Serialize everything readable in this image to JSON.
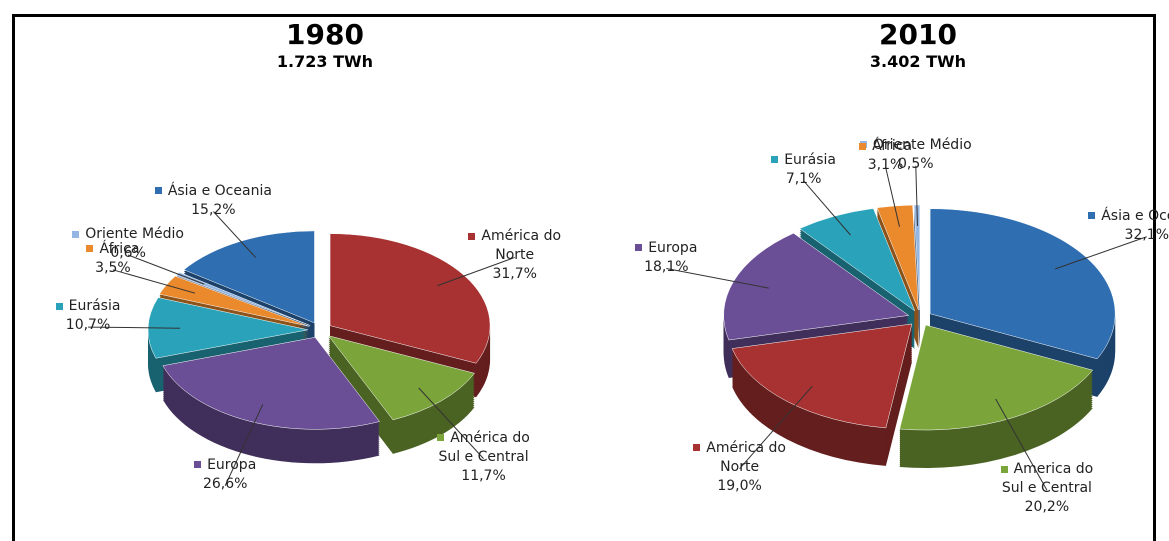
{
  "chart_data": [
    {
      "type": "pie",
      "title": "1980",
      "subtitle": "1.723 TWh",
      "series": [
        {
          "name": "América do Norte",
          "color": "#a83232",
          "values": [
            31.7
          ],
          "value_labels": [
            "31,7%"
          ]
        },
        {
          "name": "América do Sul e Central",
          "color": "#7ba53a",
          "values": [
            11.7
          ],
          "value_labels": [
            "11,7%"
          ]
        },
        {
          "name": "Europa",
          "color": "#6b4f96",
          "values": [
            26.6
          ],
          "value_labels": [
            "26,6%"
          ]
        },
        {
          "name": "Eurásia",
          "color": "#2aa3ba",
          "values": [
            10.7
          ],
          "value_labels": [
            "10,7%"
          ]
        },
        {
          "name": "África",
          "color": "#ea8a2c",
          "values": [
            3.5
          ],
          "value_labels": [
            "3,5%"
          ]
        },
        {
          "name": "Oriente Médio",
          "color": "#93b6e3",
          "values": [
            0.6
          ],
          "value_labels": [
            "0,6%"
          ]
        },
        {
          "name": "Ásia e Oceania",
          "color": "#2f6eb1",
          "values": [
            15.2
          ],
          "value_labels": [
            "15,2%"
          ]
        }
      ]
    },
    {
      "type": "pie",
      "title": "2010",
      "subtitle": "3.402 TWh",
      "series": [
        {
          "name": "Ásia e Oceania",
          "color": "#2f6eb1",
          "values": [
            32.1
          ],
          "value_labels": [
            "32,1%"
          ]
        },
        {
          "name": "America do Sul e Central",
          "color": "#7ba53a",
          "values": [
            20.2
          ],
          "value_labels": [
            "20,2%"
          ]
        },
        {
          "name": "América do Norte",
          "color": "#a83232",
          "values": [
            19.0
          ],
          "value_labels": [
            "19,0%"
          ]
        },
        {
          "name": "Europa",
          "color": "#6b4f96",
          "values": [
            18.1
          ],
          "value_labels": [
            "18,1%"
          ]
        },
        {
          "name": "Eurásia",
          "color": "#2aa3ba",
          "values": [
            7.1
          ],
          "value_labels": [
            "7,1%"
          ]
        },
        {
          "name": "África",
          "color": "#ea8a2c",
          "values": [
            3.1
          ],
          "value_labels": [
            "3,1%"
          ]
        },
        {
          "name": "Oriente Médio",
          "color": "#93b6e3",
          "values": [
            0.5
          ],
          "value_labels": [
            "0,5%"
          ]
        }
      ]
    }
  ]
}
